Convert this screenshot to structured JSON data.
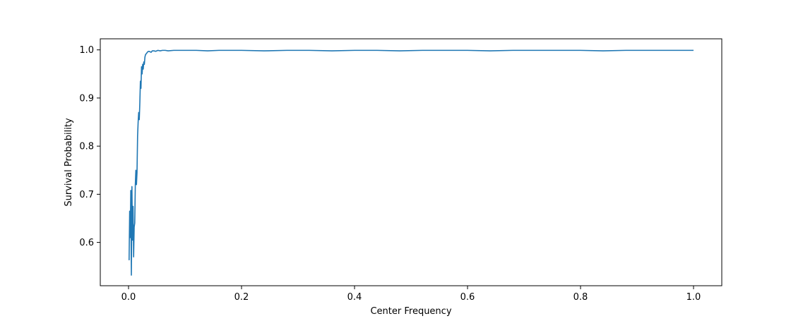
{
  "chart_data": {
    "type": "line",
    "title": "",
    "xlabel": "Center Frequency",
    "ylabel": "Survival Probability",
    "xlim": [
      -0.05,
      1.05
    ],
    "ylim": [
      0.51,
      1.023
    ],
    "grid": false,
    "xticks": [
      {
        "value": 0.0,
        "label": "0.0"
      },
      {
        "value": 0.2,
        "label": "0.2"
      },
      {
        "value": 0.4,
        "label": "0.4"
      },
      {
        "value": 0.6,
        "label": "0.6"
      },
      {
        "value": 0.8,
        "label": "0.8"
      },
      {
        "value": 1.0,
        "label": "1.0"
      }
    ],
    "yticks": [
      {
        "value": 0.6,
        "label": "0.6"
      },
      {
        "value": 0.7,
        "label": "0.7"
      },
      {
        "value": 0.8,
        "label": "0.8"
      },
      {
        "value": 0.9,
        "label": "0.9"
      },
      {
        "value": 1.0,
        "label": "1.0"
      }
    ],
    "series": [
      {
        "color": "#1f77b4",
        "x": [
          0.001,
          0.002,
          0.003,
          0.004,
          0.005,
          0.006,
          0.007,
          0.008,
          0.009,
          0.01,
          0.011,
          0.012,
          0.013,
          0.014,
          0.015,
          0.016,
          0.017,
          0.018,
          0.019,
          0.02,
          0.021,
          0.022,
          0.023,
          0.024,
          0.025,
          0.026,
          0.027,
          0.028,
          0.029,
          0.03,
          0.032,
          0.034,
          0.036,
          0.038,
          0.04,
          0.042,
          0.045,
          0.048,
          0.052,
          0.056,
          0.06,
          0.065,
          0.07,
          0.08,
          0.09,
          0.1,
          0.12,
          0.14,
          0.16,
          0.18,
          0.2,
          0.24,
          0.28,
          0.32,
          0.36,
          0.4,
          0.44,
          0.48,
          0.52,
          0.56,
          0.6,
          0.64,
          0.68,
          0.72,
          0.76,
          0.8,
          0.84,
          0.88,
          0.92,
          0.96,
          1.0
        ],
        "y": [
          0.563,
          0.665,
          0.61,
          0.708,
          0.532,
          0.716,
          0.605,
          0.675,
          0.57,
          0.632,
          0.64,
          0.72,
          0.75,
          0.72,
          0.745,
          0.82,
          0.85,
          0.87,
          0.855,
          0.89,
          0.935,
          0.92,
          0.965,
          0.95,
          0.97,
          0.96,
          0.975,
          0.97,
          0.985,
          0.99,
          0.993,
          0.996,
          0.997,
          0.996,
          0.995,
          0.998,
          0.998,
          0.997,
          0.999,
          0.998,
          0.999,
          0.999,
          0.998,
          0.999,
          0.999,
          0.999,
          0.999,
          0.998,
          0.999,
          0.999,
          0.999,
          0.998,
          0.999,
          0.999,
          0.998,
          0.999,
          0.999,
          0.998,
          0.999,
          0.999,
          0.999,
          0.998,
          0.999,
          0.999,
          0.999,
          0.999,
          0.998,
          0.999,
          0.999,
          0.999,
          0.999
        ]
      }
    ]
  }
}
